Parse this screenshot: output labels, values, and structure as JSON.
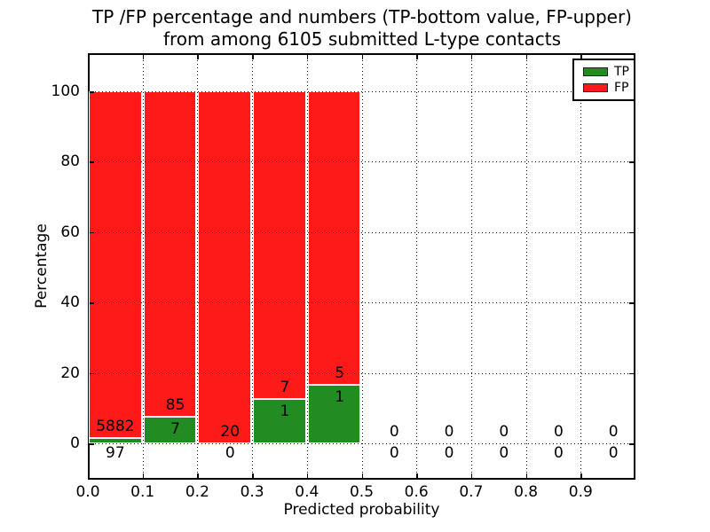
{
  "title": {
    "line1": "TP /FP percentage and numbers (TP-bottom value, FP-upper)",
    "line2": "from among 6105 submitted L-type contacts"
  },
  "axes": {
    "x_label": "Predicted probability",
    "y_label": "Percentage",
    "x_tick_labels": [
      "0.0",
      "0.1",
      "0.2",
      "0.3",
      "0.4",
      "0.5",
      "0.6",
      "0.7",
      "0.8",
      "0.9"
    ],
    "x_tick_values": [
      0.0,
      0.1,
      0.2,
      0.3,
      0.4,
      0.5,
      0.6,
      0.7,
      0.8,
      0.9
    ],
    "y_tick_labels": [
      "0",
      "20",
      "40",
      "60",
      "80",
      "100"
    ],
    "y_tick_values": [
      0,
      20,
      40,
      60,
      80,
      100
    ],
    "grid": "dotted"
  },
  "legend": {
    "position": "upper right",
    "items": [
      {
        "label": "TP",
        "color": "#228b22"
      },
      {
        "label": "FP",
        "color": "#ff1a1a"
      }
    ]
  },
  "chart_data": {
    "type": "bar",
    "stacked": true,
    "title": "TP /FP percentage and numbers (TP-bottom value, FP-upper) from among 6105 submitted L-type contacts",
    "xlabel": "Predicted probability",
    "ylabel": "Percentage",
    "xlim": [
      0.0,
      1.0
    ],
    "ylim_pct": [
      -10.5,
      110.5
    ],
    "bin_width": 0.1,
    "bin_starts": [
      0.0,
      0.1,
      0.2,
      0.3,
      0.4,
      0.5,
      0.6,
      0.7,
      0.8,
      0.9
    ],
    "total_submitted": 6105,
    "annotation_note": "TP count shown at bottom of each bar, FP count shown above it",
    "series": [
      {
        "name": "TP",
        "color": "#228b22",
        "counts": [
          97,
          7,
          0,
          1,
          1,
          0,
          0,
          0,
          0,
          0
        ],
        "pct": [
          1.62,
          7.61,
          0,
          12.5,
          16.67,
          0,
          0,
          0,
          0,
          0
        ]
      },
      {
        "name": "FP",
        "color": "#ff1a1a",
        "counts": [
          5882,
          85,
          20,
          7,
          5,
          0,
          0,
          0,
          0,
          0
        ],
        "pct": [
          98.38,
          92.39,
          100,
          87.5,
          83.33,
          0,
          0,
          0,
          0,
          0
        ]
      }
    ]
  }
}
